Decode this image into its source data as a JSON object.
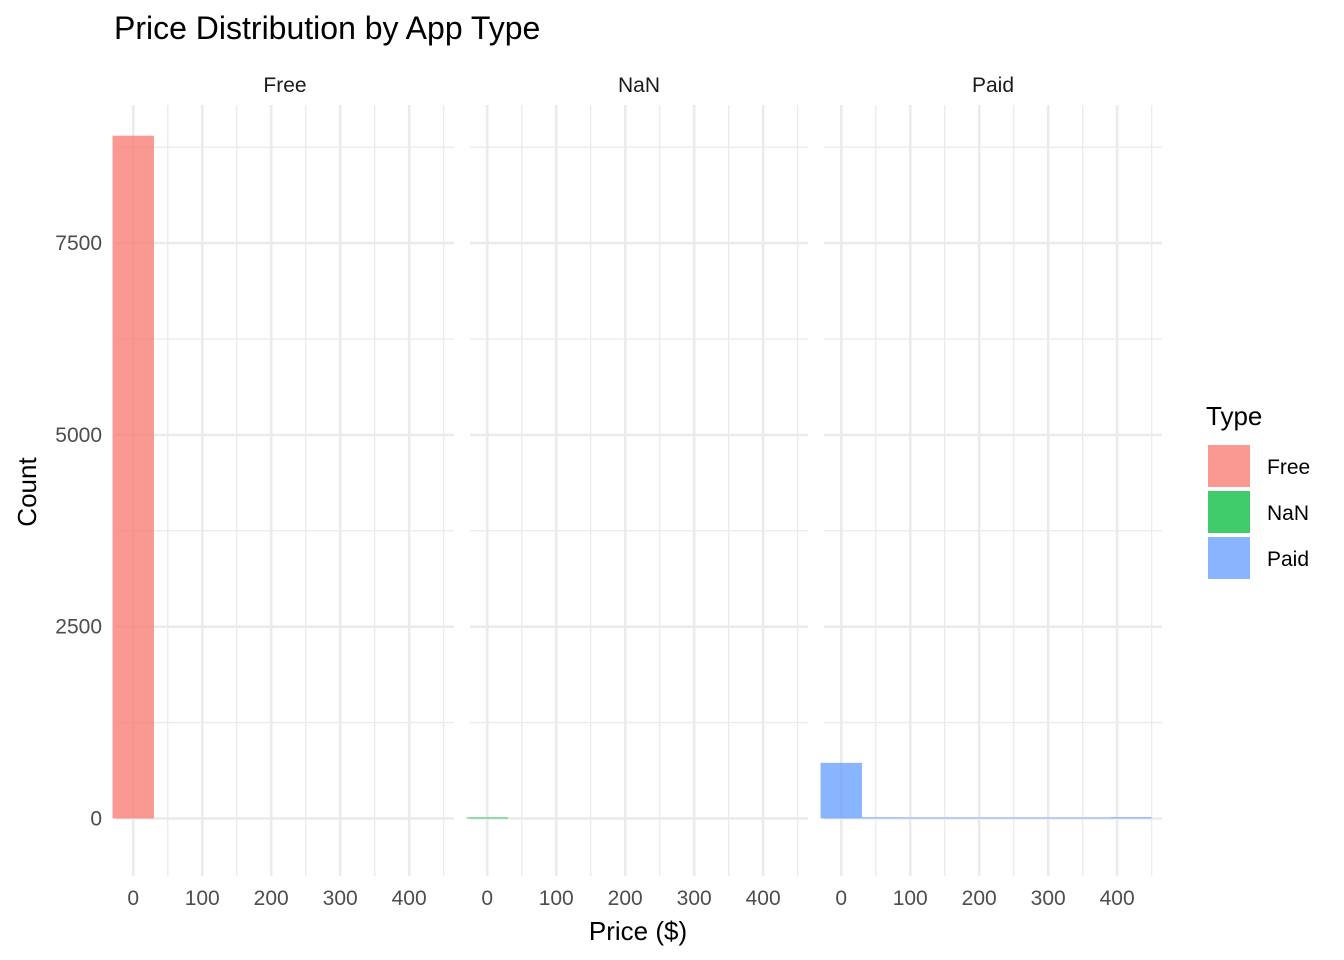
{
  "chart_data": {
    "type": "bar",
    "subtype": "faceted-histogram",
    "title": "Price Distribution by App Type",
    "xlabel": "Price ($)",
    "ylabel": "Count",
    "xlim": [
      -25,
      465
    ],
    "ylim": [
      -750,
      9300
    ],
    "x_ticks": [
      0,
      100,
      200,
      300,
      400
    ],
    "y_ticks": [
      0,
      2500,
      5000,
      7500
    ],
    "bin_width": 60,
    "grid": true,
    "legend": {
      "title": "Type",
      "position": "right",
      "entries": [
        {
          "label": "Free",
          "color": "#F8766D"
        },
        {
          "label": "NaN",
          "color": "#00BA38"
        },
        {
          "label": "Paid",
          "color": "#619CFF"
        }
      ]
    },
    "facets": [
      {
        "label": "Free",
        "color": "#F8766D",
        "bins": [
          {
            "x0": -30,
            "x1": 30,
            "count": 8900
          }
        ]
      },
      {
        "label": "NaN",
        "color": "#00BA38",
        "bins": [
          {
            "x0": -30,
            "x1": 30,
            "count": 1
          }
        ]
      },
      {
        "label": "Paid",
        "color": "#619CFF",
        "bins": [
          {
            "x0": -30,
            "x1": 30,
            "count": 725
          },
          {
            "x0": 30,
            "x1": 90,
            "count": 15
          },
          {
            "x0": 90,
            "x1": 150,
            "count": 2
          },
          {
            "x0": 150,
            "x1": 210,
            "count": 1
          },
          {
            "x0": 210,
            "x1": 270,
            "count": 1
          },
          {
            "x0": 270,
            "x1": 330,
            "count": 1
          },
          {
            "x0": 330,
            "x1": 390,
            "count": 2
          },
          {
            "x0": 390,
            "x1": 450,
            "count": 17
          }
        ]
      }
    ]
  }
}
